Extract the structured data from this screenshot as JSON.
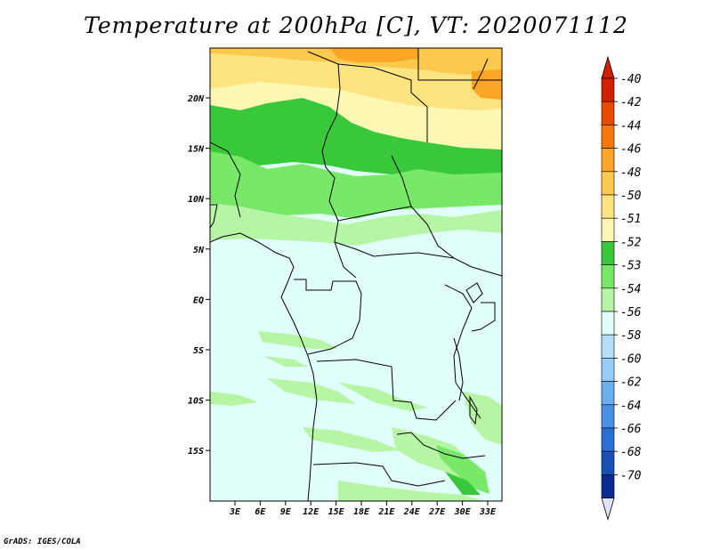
{
  "title": "Temperature at 200hPa [C], VT: 2020071112",
  "credit": "GrADS: IGES/COLA",
  "lat_labels": [
    "20N",
    "15N",
    "10N",
    "5N",
    "EQ",
    "5S",
    "10S",
    "15S"
  ],
  "lon_labels": [
    "3E",
    "6E",
    "9E",
    "12E",
    "15E",
    "18E",
    "21E",
    "24E",
    "27E",
    "30E",
    "33E"
  ],
  "colorbar": [
    {
      "label": "-40",
      "color": "#d11f00"
    },
    {
      "label": "-42",
      "color": "#e84a00"
    },
    {
      "label": "-44",
      "color": "#f7790a"
    },
    {
      "label": "-46",
      "color": "#fba626"
    },
    {
      "label": "-48",
      "color": "#fcc94f"
    },
    {
      "label": "-50",
      "color": "#fde480"
    },
    {
      "label": "-51",
      "color": "#fdf7b4"
    },
    {
      "label": "-52",
      "color": "#39c83a"
    },
    {
      "label": "-53",
      "color": "#78e868"
    },
    {
      "label": "-54",
      "color": "#b5f5a4"
    },
    {
      "label": "-56",
      "color": "#e0fffa"
    },
    {
      "label": "-58",
      "color": "#b4defa"
    },
    {
      "label": "-60",
      "color": "#96cdf5"
    },
    {
      "label": "-62",
      "color": "#6aaef0"
    },
    {
      "label": "-64",
      "color": "#4a8fe6"
    },
    {
      "label": "-66",
      "color": "#2a6fd6"
    },
    {
      "label": "-68",
      "color": "#1a4fb8"
    },
    {
      "label": "-70",
      "color": "#0a2a94"
    },
    {
      "label": "",
      "color": "#0a0a6a"
    }
  ],
  "colorbar_end_colors": {
    "top": "#d11f00",
    "bottom": "#e0e0ff"
  }
}
